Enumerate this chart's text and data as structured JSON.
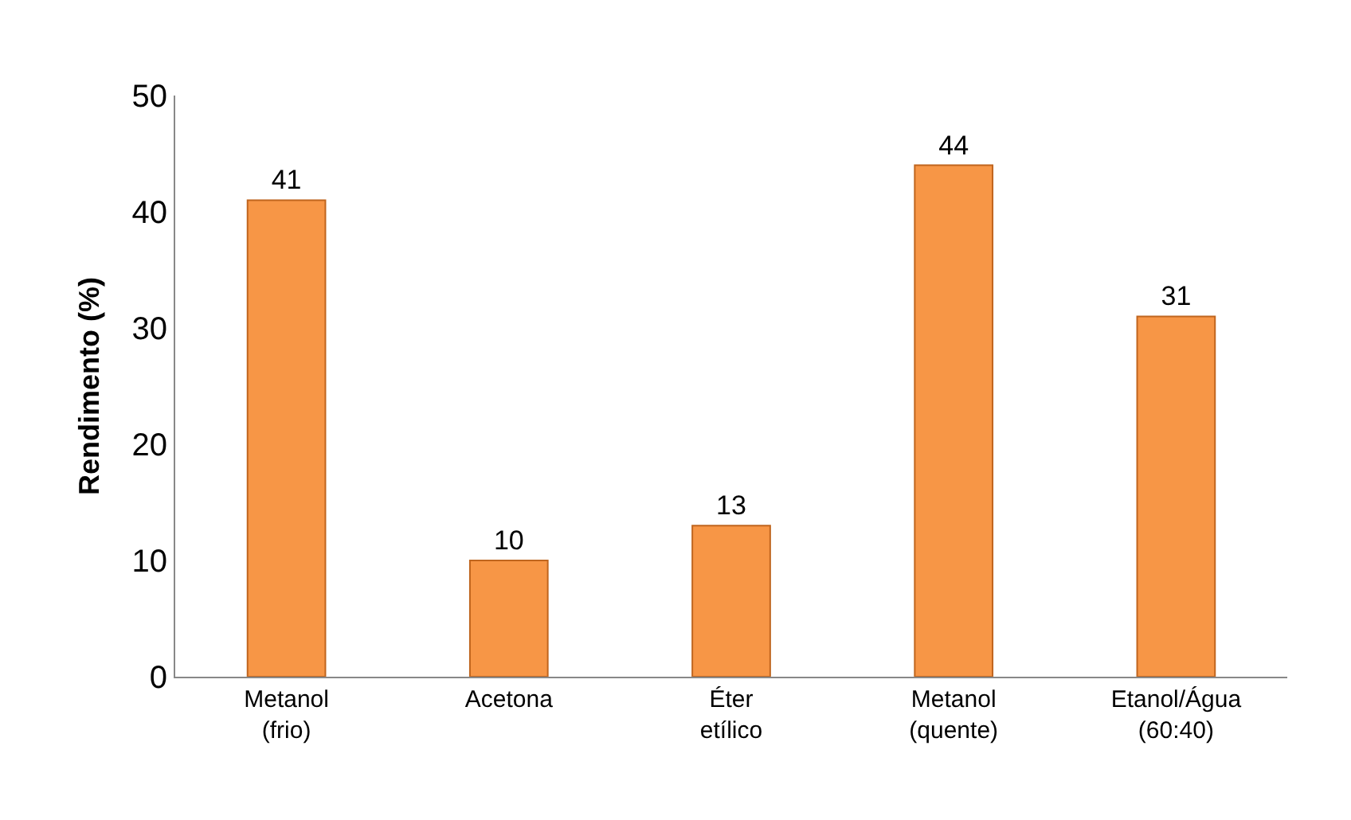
{
  "chart_data": {
    "type": "bar",
    "ylabel": "Rendimento (%)",
    "categories": [
      "Metanol (frio)",
      "Acetona",
      "Éter etílico",
      "Metanol (quente)",
      "Etanol/Água (60:40)"
    ],
    "values": [
      41,
      10,
      13,
      44,
      31
    ],
    "color": "#f79646",
    "ylim": [
      0,
      50
    ],
    "yticks": [
      0,
      10,
      20,
      30,
      40,
      50
    ],
    "data_labels": true
  }
}
